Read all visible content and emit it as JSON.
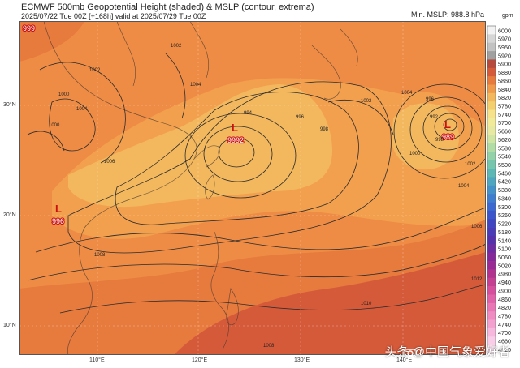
{
  "header": {
    "title": "ECMWF 500mb Geopotential Height (shaded) & MSLP (contour, extrema)",
    "subtitle": "2025/07/22 Tue 00Z [+168h] valid at 2025/07/29 Tue 00Z",
    "min_mslp": "Min. MSLP: 988.8 hPa"
  },
  "colorbar": {
    "unit": "gpm",
    "levels": [
      "6000",
      "5970",
      "5950",
      "5920",
      "5900",
      "5880",
      "5860",
      "5840",
      "5820",
      "5780",
      "5740",
      "5700",
      "5660",
      "5620",
      "5580",
      "5540",
      "5500",
      "5460",
      "5420",
      "5380",
      "5340",
      "5300",
      "5260",
      "5220",
      "5180",
      "5140",
      "5100",
      "5060",
      "5020",
      "4980",
      "4940",
      "4900",
      "4860",
      "4820",
      "4780",
      "4740",
      "4700",
      "4660",
      "4620"
    ],
    "colors": [
      "#f2f2f2",
      "#d6d6d6",
      "#c2c2c2",
      "#a0a0a0",
      "#b54a3d",
      "#d55a3a",
      "#e77a3d",
      "#f09b4c",
      "#f3b85e",
      "#f4cf6e",
      "#f5e28a",
      "#f1ea98",
      "#e7e9a2",
      "#d0e5a4",
      "#b2dca6",
      "#93d1a8",
      "#76c5ad",
      "#5db7b5",
      "#4ea6bf",
      "#4592c8",
      "#3f7ece",
      "#3b69cf",
      "#3b56ca",
      "#3f46c0",
      "#4a3bb6",
      "#5532ab",
      "#6d2ca2",
      "#84289a",
      "#9a2b94",
      "#b2338f",
      "#c53f92",
      "#d54f9c",
      "#e062a8",
      "#e977b5",
      "#ef8cc2",
      "#f3a2cf",
      "#f6b8dc",
      "#f9cde7",
      "#fce1f1"
    ]
  },
  "map": {
    "lat_labels": [
      "30°N",
      "20°N",
      "10°N"
    ],
    "lon_labels": [
      "110°E",
      "120°E",
      "130°E",
      "140°E"
    ],
    "extrema": [
      {
        "label": "L",
        "value": "999"
      },
      {
        "label": "L",
        "value": "996"
      },
      {
        "label": "L",
        "value": "9992"
      },
      {
        "label": "L",
        "value": "989"
      }
    ],
    "contour_labels": [
      "1000",
      "1002",
      "1004",
      "1006",
      "1008",
      "1000",
      "1002",
      "1004",
      "994",
      "996",
      "998",
      "1002",
      "1004",
      "996",
      "992",
      "998",
      "1000",
      "1002",
      "1004",
      "1006",
      "1008",
      "1010",
      "1012"
    ]
  },
  "watermark": "头条 @中国气象爱好者"
}
